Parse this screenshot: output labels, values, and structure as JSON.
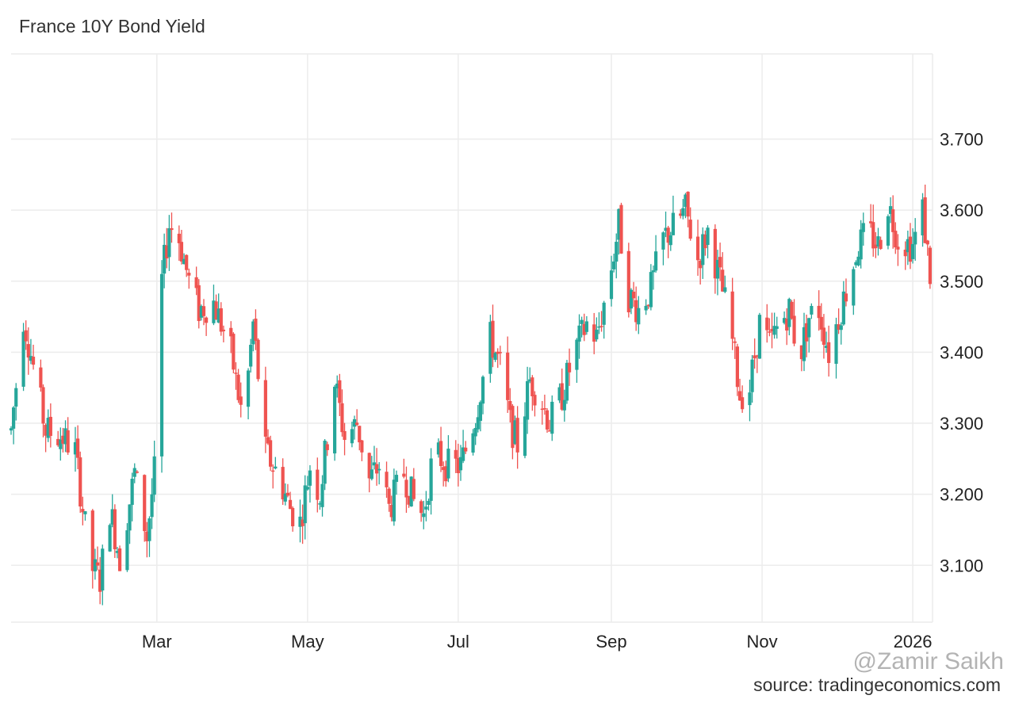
{
  "title": "France 10Y Bond Yield",
  "watermark": "@Zamir Saikh",
  "source": "source: tradingeconomics.com",
  "colors": {
    "up": "#26a69a",
    "down": "#ef5350",
    "grid": "#ececec"
  },
  "chart_data": {
    "type": "candlestick",
    "title": "France 10Y Bond Yield",
    "y_ticks": [
      "3.100",
      "3.200",
      "3.300",
      "3.400",
      "3.500",
      "3.600",
      "3.700"
    ],
    "x_ticks": [
      "Mar",
      "May",
      "Jul",
      "Sep",
      "Nov",
      "2026"
    ],
    "x_range": [
      "2025-01-01",
      "2026-01-09"
    ],
    "ylim": [
      3.02,
      3.82
    ],
    "grid": true,
    "approx_close_path": [
      [
        "2025-01-01",
        3.29
      ],
      [
        "2025-01-06",
        3.45
      ],
      [
        "2025-01-10",
        3.38
      ],
      [
        "2025-01-15",
        3.29
      ],
      [
        "2025-01-22",
        3.28
      ],
      [
        "2025-01-27",
        3.26
      ],
      [
        "2025-02-02",
        3.1
      ],
      [
        "2025-02-06",
        3.08
      ],
      [
        "2025-02-10",
        3.18
      ],
      [
        "2025-02-14",
        3.11
      ],
      [
        "2025-02-20",
        3.23
      ],
      [
        "2025-02-25",
        3.14
      ],
      [
        "2025-02-28",
        3.23
      ],
      [
        "2025-03-03",
        3.5
      ],
      [
        "2025-03-06",
        3.58
      ],
      [
        "2025-03-10",
        3.56
      ],
      [
        "2025-03-14",
        3.5
      ],
      [
        "2025-03-18",
        3.46
      ],
      [
        "2025-03-24",
        3.47
      ],
      [
        "2025-03-31",
        3.4
      ],
      [
        "2025-04-05",
        3.3
      ],
      [
        "2025-04-09",
        3.44
      ],
      [
        "2025-04-14",
        3.26
      ],
      [
        "2025-04-20",
        3.22
      ],
      [
        "2025-04-24",
        3.18
      ],
      [
        "2025-04-28",
        3.16
      ],
      [
        "2025-05-02",
        3.24
      ],
      [
        "2025-05-06",
        3.2
      ],
      [
        "2025-05-12",
        3.36
      ],
      [
        "2025-05-16",
        3.28
      ],
      [
        "2025-05-21",
        3.3
      ],
      [
        "2025-05-26",
        3.22
      ],
      [
        "2025-05-30",
        3.24
      ],
      [
        "2025-06-03",
        3.18
      ],
      [
        "2025-06-09",
        3.23
      ],
      [
        "2025-06-13",
        3.19
      ],
      [
        "2025-06-17",
        3.17
      ],
      [
        "2025-06-21",
        3.26
      ],
      [
        "2025-06-27",
        3.24
      ],
      [
        "2025-07-02",
        3.24
      ],
      [
        "2025-07-08",
        3.31
      ],
      [
        "2025-07-14",
        3.42
      ],
      [
        "2025-07-18",
        3.38
      ],
      [
        "2025-07-22",
        3.3
      ],
      [
        "2025-07-25",
        3.27
      ],
      [
        "2025-07-30",
        3.36
      ],
      [
        "2025-08-03",
        3.34
      ],
      [
        "2025-08-07",
        3.3
      ],
      [
        "2025-08-12",
        3.34
      ],
      [
        "2025-08-17",
        3.4
      ],
      [
        "2025-08-22",
        3.44
      ],
      [
        "2025-08-26",
        3.42
      ],
      [
        "2025-08-31",
        3.5
      ],
      [
        "2025-09-04",
        3.58
      ],
      [
        "2025-09-08",
        3.48
      ],
      [
        "2025-09-12",
        3.46
      ],
      [
        "2025-09-17",
        3.49
      ],
      [
        "2025-09-22",
        3.56
      ],
      [
        "2025-09-27",
        3.58
      ],
      [
        "2025-10-01",
        3.6
      ],
      [
        "2025-10-06",
        3.53
      ],
      [
        "2025-10-10",
        3.57
      ],
      [
        "2025-10-15",
        3.5
      ],
      [
        "2025-10-19",
        3.44
      ],
      [
        "2025-10-23",
        3.34
      ],
      [
        "2025-10-27",
        3.35
      ],
      [
        "2025-10-31",
        3.44
      ],
      [
        "2025-11-04",
        3.41
      ],
      [
        "2025-11-08",
        3.44
      ],
      [
        "2025-11-12",
        3.46
      ],
      [
        "2025-11-16",
        3.39
      ],
      [
        "2025-11-20",
        3.45
      ],
      [
        "2025-11-24",
        3.46
      ],
      [
        "2025-11-28",
        3.4
      ],
      [
        "2025-12-02",
        3.45
      ],
      [
        "2025-12-06",
        3.5
      ],
      [
        "2025-12-10",
        3.55
      ],
      [
        "2025-12-14",
        3.57
      ],
      [
        "2025-12-18",
        3.55
      ],
      [
        "2025-12-22",
        3.61
      ],
      [
        "2025-12-26",
        3.56
      ],
      [
        "2026-01-01",
        3.55
      ],
      [
        "2026-01-05",
        3.6
      ],
      [
        "2026-01-08",
        3.51
      ]
    ]
  }
}
